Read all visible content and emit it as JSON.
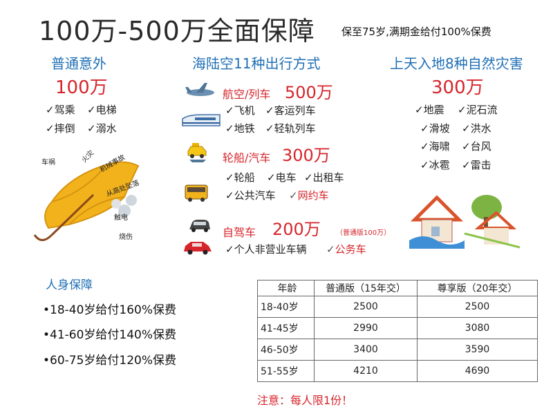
{
  "title": "100万-500万全面保障",
  "subtitle": "保至75岁,满期金给付100%保费",
  "accident": {
    "heading": "普通意外",
    "amount": "100万",
    "items": [
      "驾乘",
      "电梯",
      "摔倒",
      "溺水"
    ],
    "umbrella_labels": [
      "车祸",
      "火灾",
      "机械事故",
      "从高处坠落",
      "触电",
      "烧伤"
    ]
  },
  "travel": {
    "heading": "海陆空11种出行方式",
    "groups": [
      {
        "label": "航空/列车",
        "amount": "500万",
        "items": [
          "飞机",
          "客运列车",
          "地铁",
          "轻轨列车"
        ]
      },
      {
        "label": "轮船/汽车",
        "amount": "300万",
        "items": [
          "轮船",
          "电车",
          "出租车",
          "公共汽车",
          "网约车"
        ]
      },
      {
        "label": "自驾车",
        "amount": "200万",
        "note": "（普通版100万）",
        "items": [
          "个人非营业车辆",
          "公务车"
        ]
      }
    ]
  },
  "disaster": {
    "heading": "上天入地8种自然灾害",
    "amount": "300万",
    "items": [
      "地震",
      "泥石流",
      "滑坡",
      "洪水",
      "海啸",
      "台风",
      "冰雹",
      "雷击"
    ]
  },
  "personal": {
    "heading": "人身保障",
    "rules": [
      "•18-40岁给付160%保费",
      "•41-60岁给付140%保费",
      "•60-75岁给付120%保费"
    ]
  },
  "premium_table": {
    "headers": [
      "年龄",
      "普通版（15年交）",
      "尊享版（20年交）"
    ],
    "rows": [
      [
        "18-40岁",
        "2500",
        "2500"
      ],
      [
        "41-45岁",
        "2990",
        "3080"
      ],
      [
        "46-50岁",
        "3400",
        "3590"
      ],
      [
        "51-55岁",
        "4210",
        "4690"
      ]
    ]
  },
  "footnote": "注意：每人限1份！",
  "colors": {
    "accent_red": "#d6252b",
    "accent_blue": "#1f6fb5",
    "umbrella": "#f2b21b"
  }
}
